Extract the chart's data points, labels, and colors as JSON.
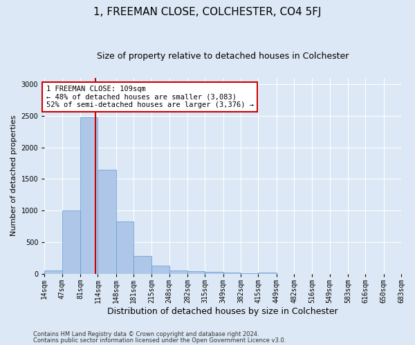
{
  "title": "1, FREEMAN CLOSE, COLCHESTER, CO4 5FJ",
  "subtitle": "Size of property relative to detached houses in Colchester",
  "xlabel": "Distribution of detached houses by size in Colchester",
  "ylabel": "Number of detached properties",
  "footnote1": "Contains HM Land Registry data © Crown copyright and database right 2024.",
  "footnote2": "Contains public sector information licensed under the Open Government Licence v3.0.",
  "annotation_line1": "1 FREEMAN CLOSE: 109sqm",
  "annotation_line2": "← 48% of detached houses are smaller (3,083)",
  "annotation_line3": "52% of semi-detached houses are larger (3,376) →",
  "property_size": 109,
  "bin_edges": [
    14,
    47,
    81,
    114,
    148,
    181,
    215,
    248,
    282,
    315,
    349,
    382,
    415,
    449,
    482,
    516,
    549,
    583,
    616,
    650,
    683
  ],
  "bin_labels": [
    "14sqm",
    "47sqm",
    "81sqm",
    "114sqm",
    "148sqm",
    "181sqm",
    "215sqm",
    "248sqm",
    "282sqm",
    "315sqm",
    "349sqm",
    "382sqm",
    "415sqm",
    "449sqm",
    "482sqm",
    "516sqm",
    "549sqm",
    "583sqm",
    "616sqm",
    "650sqm",
    "683sqm"
  ],
  "counts": [
    50,
    1000,
    2480,
    1650,
    830,
    280,
    130,
    50,
    45,
    30,
    15,
    5,
    20,
    2,
    0,
    0,
    0,
    0,
    0,
    0
  ],
  "bar_color": "#aec6e8",
  "bar_edge_color": "#5b9bd5",
  "vline_color": "#cc0000",
  "vline_x": 109,
  "ylim": [
    0,
    3100
  ],
  "yticks": [
    0,
    500,
    1000,
    1500,
    2000,
    2500,
    3000
  ],
  "background_color": "#dce8f5",
  "plot_bg_color": "#dce8f5",
  "annotation_box_facecolor": "white",
  "annotation_box_edgecolor": "#cc0000",
  "grid_color": "white",
  "title_fontsize": 11,
  "subtitle_fontsize": 9,
  "ylabel_fontsize": 8,
  "xlabel_fontsize": 9,
  "tick_fontsize": 7,
  "annotation_fontsize": 7.5,
  "footnote_fontsize": 6
}
